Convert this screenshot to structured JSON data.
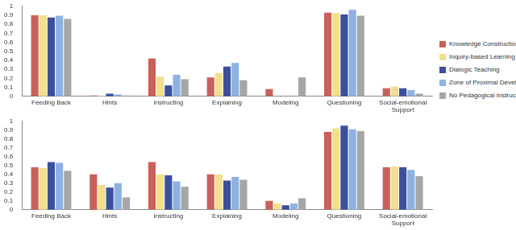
{
  "chart_data": [
    {
      "type": "bar",
      "categories": [
        "Feeding Back",
        "Hints",
        "Instructing",
        "Explaining",
        "Modeling",
        "Questioning",
        "Social-emotional Support"
      ],
      "series": [
        {
          "name": "Knowledge Construction",
          "color": "#c9605a",
          "values": [
            0.9,
            0.01,
            0.42,
            0.21,
            0.08,
            0.93,
            0.09
          ]
        },
        {
          "name": "Inquiry-based Learning",
          "color": "#f3df8c",
          "values": [
            0.9,
            0.005,
            0.22,
            0.26,
            0,
            0.925,
            0.11
          ]
        },
        {
          "name": "Dialogic Teaching",
          "color": "#3b4f9e",
          "values": [
            0.875,
            0.03,
            0.12,
            0.33,
            0,
            0.91,
            0.09
          ]
        },
        {
          "name": "Zone of Proximal Development",
          "color": "#8db2e2",
          "values": [
            0.895,
            0.02,
            0.24,
            0.37,
            0,
            0.96,
            0.07
          ]
        },
        {
          "name": "No Pedagogical Instruction",
          "color": "#a6a6a6",
          "values": [
            0.86,
            0.01,
            0.19,
            0.18,
            0.21,
            0.895,
            0.03
          ]
        }
      ],
      "ylim": [
        0,
        1
      ],
      "yticks": [
        0,
        0.1,
        0.2,
        0.3,
        0.4,
        0.5,
        0.6,
        0.7,
        0.8,
        0.9,
        1
      ],
      "grid": false,
      "legend": "right"
    },
    {
      "type": "bar",
      "categories": [
        "Feeding Back",
        "Hints",
        "Instructing",
        "Explaining",
        "Modeling",
        "Questioning",
        "Social-emotional Support"
      ],
      "series": [
        {
          "name": "Knowledge Construction",
          "color": "#c9605a",
          "values": [
            0.48,
            0.4,
            0.54,
            0.4,
            0.1,
            0.88,
            0.48
          ]
        },
        {
          "name": "Inquiry-based Learning",
          "color": "#f3df8c",
          "values": [
            0.47,
            0.28,
            0.4,
            0.4,
            0.07,
            0.92,
            0.49
          ]
        },
        {
          "name": "Dialogic Teaching",
          "color": "#3b4f9e",
          "values": [
            0.54,
            0.25,
            0.39,
            0.33,
            0.05,
            0.95,
            0.48
          ]
        },
        {
          "name": "Zone of Proximal Development",
          "color": "#8db2e2",
          "values": [
            0.53,
            0.3,
            0.32,
            0.37,
            0.07,
            0.91,
            0.45
          ]
        },
        {
          "name": "No Pedagogical Instruction",
          "color": "#a6a6a6",
          "values": [
            0.44,
            0.14,
            0.26,
            0.34,
            0.13,
            0.89,
            0.38
          ]
        }
      ],
      "ylim": [
        0,
        1
      ],
      "yticks": [
        0,
        0.1,
        0.2,
        0.3,
        0.4,
        0.5,
        0.6,
        0.7,
        0.8,
        0.9,
        1
      ],
      "grid": false
    }
  ]
}
